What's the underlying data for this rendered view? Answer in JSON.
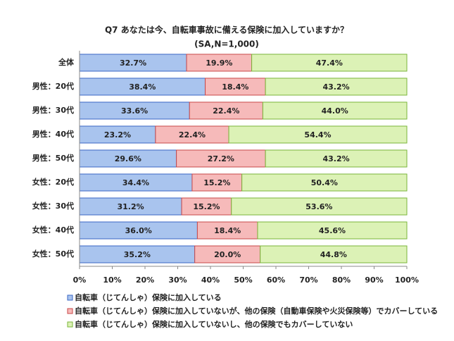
{
  "chart_data": {
    "type": "stacked-bar-horizontal",
    "title": "Q7 あなたは今、自転車事故に備える保険に加入していますか？",
    "subtitle": "(SA,N=1,000)",
    "categories": [
      "全体",
      "男性：20代",
      "男性：30代",
      "男性：40代",
      "男性：50代",
      "女性：20代",
      "女性：30代",
      "女性：40代",
      "女性：50代"
    ],
    "series": [
      {
        "name": "自転車（じてんしゃ）保険に加入している",
        "color": "#a9c4ee",
        "edge": "#3a66c4",
        "values": [
          32.7,
          38.4,
          33.6,
          23.2,
          29.6,
          34.4,
          31.2,
          36.0,
          35.2
        ],
        "value_labels": [
          "32.7%",
          "38.4%",
          "33.6%",
          "23.2%",
          "29.6%",
          "34.4%",
          "31.2%",
          "36.0%",
          "35.2%"
        ]
      },
      {
        "name": "自転車（じてんしゃ）保険に加入していないが、他の保険（自動車保険や火災保険等）でカバーしている",
        "color": "#f6baba",
        "edge": "#c84848",
        "values": [
          19.9,
          18.4,
          22.4,
          22.4,
          27.2,
          15.2,
          15.2,
          18.4,
          20.0
        ],
        "value_labels": [
          "19.9%",
          "18.4%",
          "22.4%",
          "22.4%",
          "27.2%",
          "15.2%",
          "15.2%",
          "18.4%",
          "20.0%"
        ]
      },
      {
        "name": "自転車（じてんしゃ）保険に加入していないし、他の保険でもカバーしていない",
        "color": "#dcf2b6",
        "edge": "#7ab43a",
        "values": [
          47.4,
          43.2,
          44.0,
          54.4,
          43.2,
          50.4,
          53.6,
          45.6,
          44.8
        ],
        "value_labels": [
          "47.4%",
          "43.2%",
          "44.0%",
          "54.4%",
          "43.2%",
          "50.4%",
          "53.6%",
          "45.6%",
          "44.8%"
        ]
      }
    ],
    "xlim": [
      0,
      100
    ],
    "xticks": [
      {
        "value": 0,
        "label": "0%"
      },
      {
        "value": 10,
        "label": "10%"
      },
      {
        "value": 20,
        "label": "20%"
      },
      {
        "value": 30,
        "label": "30%"
      },
      {
        "value": 40,
        "label": "40%"
      },
      {
        "value": 50,
        "label": "50%"
      },
      {
        "value": 60,
        "label": "60%"
      },
      {
        "value": 70,
        "label": "70%"
      },
      {
        "value": 80,
        "label": "80%"
      },
      {
        "value": 90,
        "label": "90%"
      },
      {
        "value": 100,
        "label": "100%"
      }
    ],
    "legend": "bottom"
  }
}
